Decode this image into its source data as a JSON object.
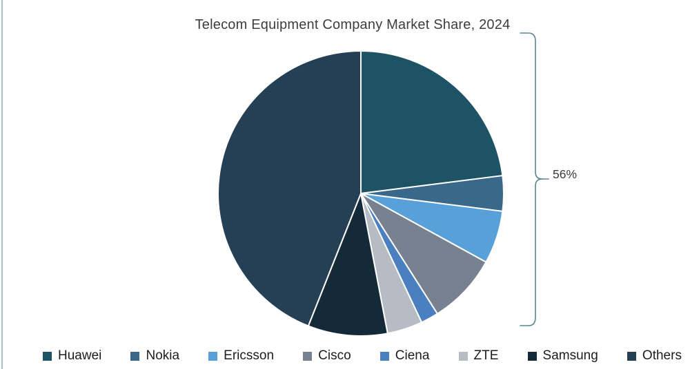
{
  "title": "Telecom Equipment Company Market Share, 2024",
  "chart_data": {
    "type": "pie",
    "title": "Telecom Equipment Company Market Share, 2024",
    "categories": [
      "Huawei",
      "Nokia",
      "Ericsson",
      "Cisco",
      "Ciena",
      "ZTE",
      "Samsung",
      "Others"
    ],
    "values": [
      23,
      4,
      6,
      8,
      2,
      4,
      9,
      44
    ],
    "unit": "%",
    "colors": [
      "#1d5365",
      "#3a688a",
      "#58a0d8",
      "#78818f",
      "#4a80c0",
      "#b5bcc4",
      "#142a38",
      "#254055"
    ],
    "start_angle": "top",
    "direction": "clockwise",
    "slice_border_color": "#ffffff",
    "legend_position": "bottom",
    "annotation": {
      "label": "56%",
      "spans_categories": [
        "Huawei",
        "Nokia",
        "Ericsson",
        "Cisco",
        "Ciena",
        "ZTE",
        "Samsung"
      ]
    }
  },
  "bracket": {
    "label": "56%",
    "color": "#58868f"
  }
}
